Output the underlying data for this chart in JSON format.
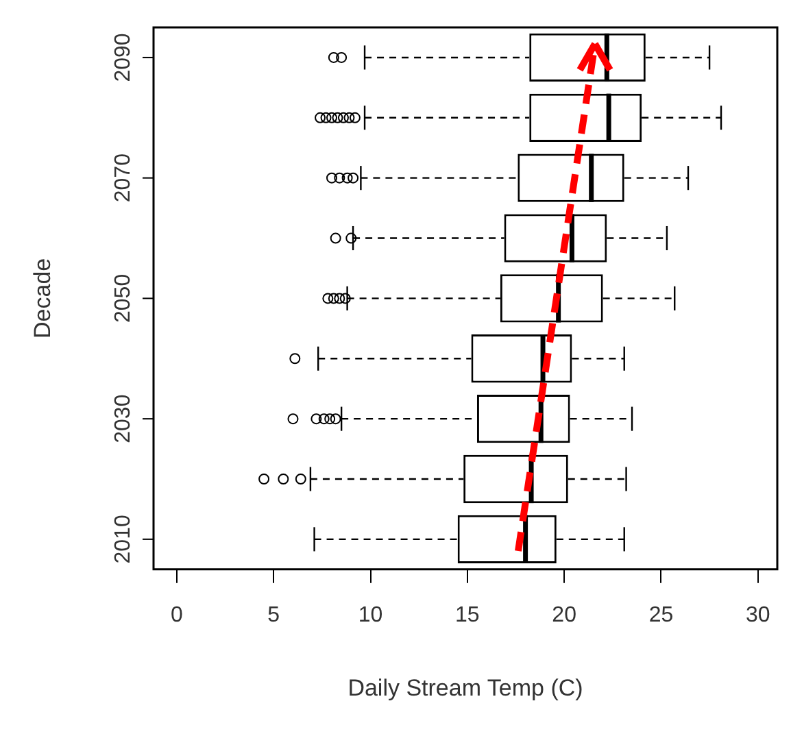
{
  "chart_data": {
    "type": "box",
    "orientation": "horizontal",
    "xlabel": "Daily Stream Temp (C)",
    "ylabel": "Decade",
    "categories": [
      "2090",
      null,
      "2070",
      null,
      "2050",
      null,
      "2030",
      null,
      "2010"
    ],
    "boxes": [
      {
        "low": 9.7,
        "q1": 18.2,
        "median": 22.2,
        "q3": 24.2,
        "high": 27.5,
        "outliers": [
          8.1,
          8.5
        ]
      },
      {
        "low": 9.7,
        "q1": 18.2,
        "median": 22.3,
        "q3": 24.0,
        "high": 28.1,
        "outliers": [
          7.4,
          7.7,
          8.0,
          8.3,
          8.6,
          8.9,
          9.2
        ]
      },
      {
        "low": 9.5,
        "q1": 17.6,
        "median": 21.4,
        "q3": 23.1,
        "high": 26.4,
        "outliers": [
          8.0,
          8.4,
          8.8,
          9.1
        ]
      },
      {
        "low": 9.1,
        "q1": 16.9,
        "median": 20.4,
        "q3": 22.2,
        "high": 25.3,
        "outliers": [
          8.2,
          9.0
        ]
      },
      {
        "low": 8.8,
        "q1": 16.7,
        "median": 19.7,
        "q3": 22.0,
        "high": 25.7,
        "outliers": [
          7.8,
          8.1,
          8.4,
          8.7
        ]
      },
      {
        "low": 7.3,
        "q1": 15.2,
        "median": 18.9,
        "q3": 20.4,
        "high": 23.1,
        "outliers": [
          6.1
        ]
      },
      {
        "low": 8.5,
        "q1": 15.5,
        "median": 18.8,
        "q3": 20.3,
        "high": 23.5,
        "outliers": [
          6.0,
          7.2,
          7.6,
          7.9,
          8.2
        ]
      },
      {
        "low": 6.9,
        "q1": 14.8,
        "median": 18.3,
        "q3": 20.2,
        "high": 23.2,
        "outliers": [
          4.5,
          5.5,
          6.4
        ]
      },
      {
        "low": 7.1,
        "q1": 14.5,
        "median": 18.0,
        "q3": 19.6,
        "high": 23.1
      }
    ],
    "xlim": [
      -1.2,
      31
    ],
    "xticks": [
      0,
      5,
      10,
      15,
      20,
      25,
      30
    ],
    "grid": false
  }
}
